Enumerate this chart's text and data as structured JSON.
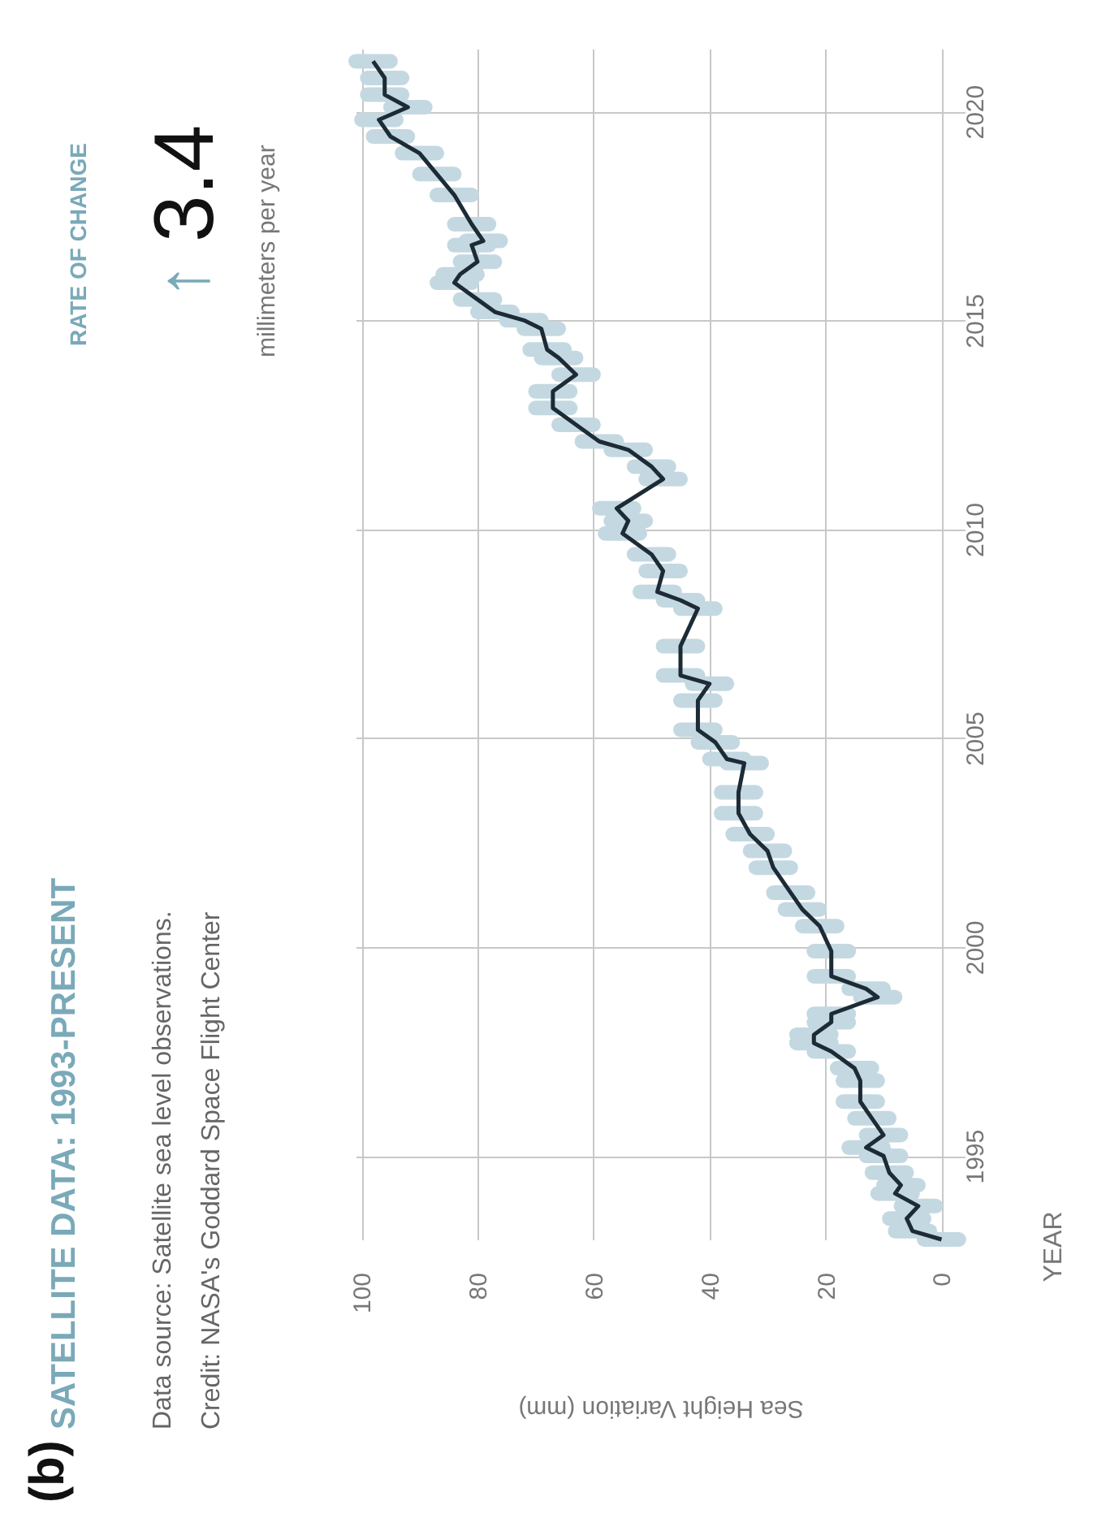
{
  "chart_data": {
    "type": "line",
    "title": "SATELLITE DATA: 1993-PRESENT",
    "xlabel": "Sea Height Variation (mm)",
    "ylabel": "YEAR",
    "annotations": [
      "(b)",
      "Data source: Satellite sea level observations.",
      "Credit: NASA's Goddard Space Flight Center",
      "RATE OF CHANGE",
      "↑",
      "3.4",
      "millimeters per year"
    ],
    "x": [
      0,
      5,
      6,
      4,
      8,
      7,
      9,
      10,
      13,
      10,
      12,
      14,
      14,
      15,
      19,
      22,
      22,
      19,
      19,
      11,
      13,
      19,
      19,
      21,
      24,
      26,
      29,
      30,
      33,
      35,
      35,
      34,
      37,
      39,
      42,
      42,
      40,
      45,
      45,
      42,
      45,
      49,
      48,
      50,
      55,
      54,
      56,
      48,
      50,
      54,
      59,
      63,
      67,
      67,
      63,
      66,
      68,
      69,
      72,
      77,
      80,
      84,
      83,
      80,
      81,
      79,
      81,
      84,
      87,
      90,
      95,
      97,
      92,
      96,
      96,
      98
    ],
    "series": [
      {
        "color": "#1c2b36",
        "values": [
          1993.0,
          1993.2,
          1993.5,
          1993.8,
          1994.1,
          1994.3,
          1994.6,
          1995.0,
          1995.2,
          1995.5,
          1995.9,
          1996.3,
          1996.8,
          1997.1,
          1997.5,
          1997.7,
          1997.9,
          1998.2,
          1998.4,
          1998.8,
          1999.0,
          1999.3,
          1999.9,
          2000.5,
          2000.9,
          2001.3,
          2001.9,
          2002.3,
          2002.7,
          2003.2,
          2003.7,
          2004.4,
          2004.5,
          2004.9,
          2005.2,
          2005.9,
          2006.3,
          2006.5,
          2007.2,
          2008.1,
          2008.3,
          2008.5,
          2009.0,
          2009.4,
          2009.9,
          2010.2,
          2010.5,
          2011.2,
          2011.5,
          2011.9,
          2012.1,
          2012.5,
          2012.9,
          2013.3,
          2013.7,
          2014.1,
          2014.3,
          2014.8,
          2015.0,
          2015.2,
          2015.5,
          2015.9,
          2016.1,
          2016.4,
          2016.8,
          2016.9,
          2017.3,
          2018.0,
          2018.5,
          2019.0,
          2019.4,
          2019.8,
          2020.1,
          2020.4,
          2020.8,
          2021.2
        ],
        "xerrors": [
          3,
          3,
          3,
          3,
          3,
          3,
          3,
          3,
          3,
          3,
          3,
          3,
          3,
          3,
          3,
          3,
          3,
          3,
          3,
          3,
          3,
          3,
          3,
          3,
          3,
          3,
          3,
          3,
          3,
          3,
          3,
          3,
          3,
          3,
          3,
          3,
          3,
          3,
          3,
          3,
          3,
          3,
          3,
          3,
          3,
          3,
          3,
          3,
          3,
          3,
          3,
          3,
          3,
          3,
          3,
          3,
          3,
          3,
          3,
          3,
          3,
          3,
          3,
          3,
          3,
          3,
          3,
          3,
          3,
          3,
          3,
          3,
          3,
          3,
          3,
          3
        ]
      }
    ],
    "xlim": [
      101,
      -4
    ],
    "xticks": [
      100,
      80,
      60,
      40,
      20,
      0
    ],
    "ylim": [
      1993,
      2021.5
    ],
    "yticks": [
      1995,
      2000,
      2005,
      2010,
      2015,
      2020
    ],
    "grid": true,
    "marker": "none",
    "line_style": "solid"
  }
}
